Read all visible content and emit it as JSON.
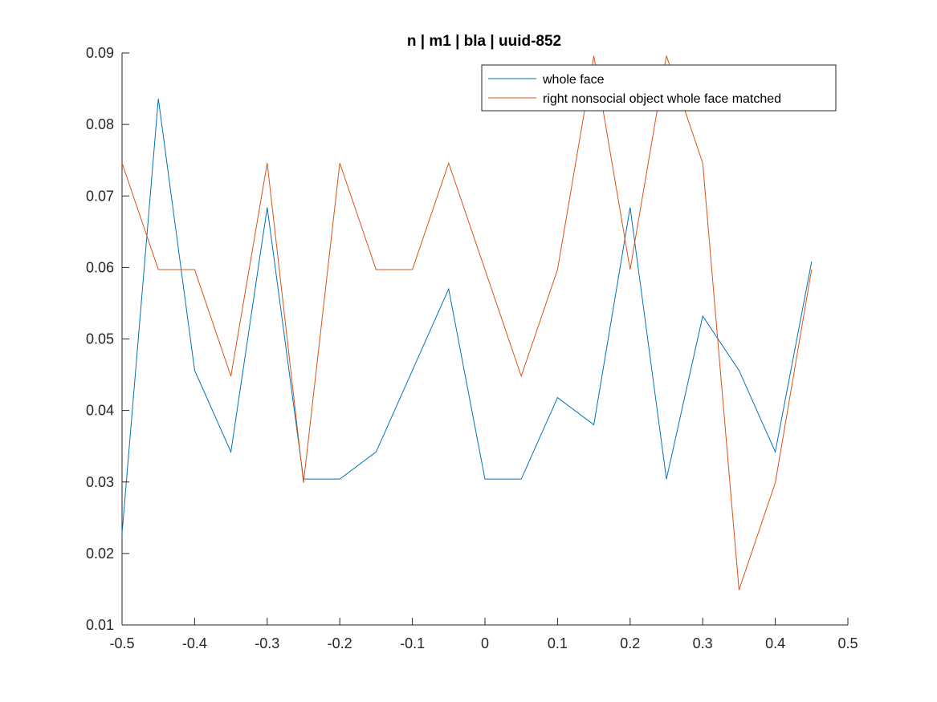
{
  "chart_data": {
    "type": "line",
    "title": "n | m1 | bla | uuid-852",
    "xlabel": "",
    "ylabel": "",
    "xlim": [
      -0.5,
      0.5
    ],
    "ylim": [
      0.01,
      0.09
    ],
    "xticks": [
      "-0.5",
      "-0.4",
      "-0.3",
      "-0.2",
      "-0.1",
      "0",
      "0.1",
      "0.2",
      "0.3",
      "0.4",
      "0.5"
    ],
    "yticks": [
      "0.01",
      "0.02",
      "0.03",
      "0.04",
      "0.05",
      "0.06",
      "0.07",
      "0.08",
      "0.09"
    ],
    "grid": false,
    "legend_position": "top-right",
    "x": [
      -0.5,
      -0.45,
      -0.4,
      -0.35,
      -0.3,
      -0.25,
      -0.2,
      -0.15,
      -0.1,
      -0.05,
      0,
      0.05,
      0.1,
      0.15,
      0.2,
      0.25,
      0.3,
      0.35,
      0.4,
      0.45
    ],
    "series": [
      {
        "name": "whole face",
        "color": "#0072BD",
        "values": [
          0.0228,
          0.0836,
          0.0456,
          0.0342,
          0.0684,
          0.0304,
          0.0304,
          0.0342,
          0.0456,
          0.057,
          0.0304,
          0.0304,
          0.0418,
          0.038,
          0.0684,
          0.0304,
          0.0532,
          0.0456,
          0.0342,
          0.0608
        ]
      },
      {
        "name": "right nonsocial object whole face matched",
        "color": "#D95319",
        "values": [
          0.0746,
          0.0597,
          0.0597,
          0.0448,
          0.0746,
          0.0299,
          0.0746,
          0.0597,
          0.0597,
          0.0746,
          0.0597,
          0.0448,
          0.0597,
          0.0896,
          0.0597,
          0.0896,
          0.0746,
          0.0149,
          0.0299,
          0.0597
        ]
      }
    ]
  }
}
